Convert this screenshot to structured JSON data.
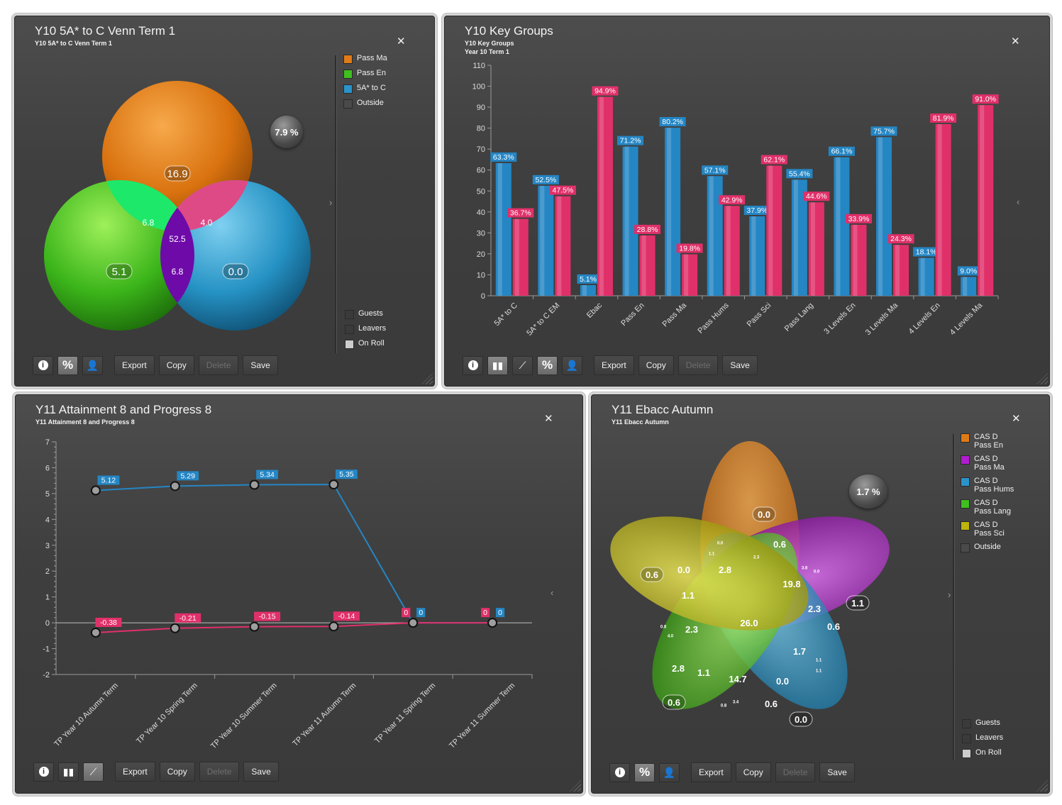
{
  "toolbar_labels": {
    "export": "Export",
    "copy": "Copy",
    "delete": "Delete",
    "save": "Save"
  },
  "panel1": {
    "title": "Y10 5A* to C Venn Term 1",
    "subtitle": "Y10 5A* to C Venn Term 1",
    "outside_pct": "7.9 %",
    "legend": [
      {
        "label": "Pass Ma",
        "color": "#e07b16"
      },
      {
        "label": "Pass En",
        "color": "#3fbf1e"
      },
      {
        "label": "5A* to C",
        "color": "#2a93c9"
      },
      {
        "label": "Outside",
        "color": "#4a4a4a"
      }
    ],
    "filters": [
      {
        "label": "Guests",
        "checked": false
      },
      {
        "label": "Leavers",
        "checked": false
      },
      {
        "label": "On Roll",
        "checked": true
      }
    ]
  },
  "panel2": {
    "title": "Y10 Key Groups",
    "subtitle": "Y10 Key Groups",
    "subtitle2": "Year 10 Term 1"
  },
  "panel3": {
    "title": "Y11 Attainment 8 and Progress 8",
    "subtitle": "Y11 Attainment 8 and Progress 8"
  },
  "panel4": {
    "title": "Y11 Ebacc Autumn",
    "subtitle": "Y11 Ebacc Autumn",
    "outside_pct": "1.7 %",
    "legend": [
      {
        "label": "CAS D Pass En",
        "color": "#e07b16"
      },
      {
        "label": "CAS D Pass Ma",
        "color": "#b21ccf"
      },
      {
        "label": "CAS D Pass Hums",
        "color": "#2a93c9"
      },
      {
        "label": "CAS D Pass Lang",
        "color": "#3fbf1e"
      },
      {
        "label": "CAS D Pass Sci",
        "color": "#bdb40e"
      },
      {
        "label": "Outside",
        "color": "#4a4a4a"
      }
    ],
    "filters": [
      {
        "label": "Guests",
        "checked": false
      },
      {
        "label": "Leavers",
        "checked": false
      },
      {
        "label": "On Roll",
        "checked": true
      }
    ]
  },
  "chart_data": [
    {
      "type": "venn",
      "title": "Y10 5A* to C Venn Term 1",
      "sets": [
        "Pass Ma",
        "Pass En",
        "5A* to C"
      ],
      "regions": {
        "Pass Ma only": "16.9",
        "Pass En only": "5.1",
        "5A* to C only": "0.0",
        "Pass Ma & Pass En": "6.8",
        "Pass Ma & 5A* to C": "4.0",
        "Pass En & 5A* to C": "6.8",
        "all three": "52.5",
        "outside": "7.9 %"
      }
    },
    {
      "type": "bar",
      "title": "Y10 Key Groups",
      "categories": [
        "5A* to C",
        "5A* to C EM",
        "Ebac",
        "Pass En",
        "Pass Ma",
        "Pass Hums",
        "Pass Sci",
        "Pass Lang",
        "3 Levels En",
        "3 Levels Ma",
        "4 Levels En",
        "4 Levels Ma"
      ],
      "series": [
        {
          "color": "#2586c4",
          "values": [
            63.3,
            52.5,
            5.1,
            71.2,
            80.2,
            57.1,
            37.9,
            55.4,
            66.1,
            75.7,
            18.1,
            9.0
          ]
        },
        {
          "color": "#e0306a",
          "values": [
            36.7,
            47.5,
            94.9,
            28.8,
            19.8,
            42.9,
            62.1,
            44.6,
            33.9,
            24.3,
            81.9,
            91.0
          ]
        }
      ],
      "ylim": [
        0,
        110
      ],
      "yticks": [
        0,
        10,
        20,
        30,
        40,
        50,
        60,
        70,
        80,
        90,
        100,
        110
      ]
    },
    {
      "type": "line",
      "title": "Y11 Attainment 8 and Progress 8",
      "categories": [
        "TP Year 10 Autumn Term",
        "TP Year 10 Spring Term",
        "TP Year 10 Summer Term",
        "TP Year 11 Autumn Term",
        "TP Year 11 Spring Term",
        "TP Year 11 Summer Term"
      ],
      "series": [
        {
          "color": "#2586c4",
          "values": [
            5.12,
            5.29,
            5.34,
            5.35,
            0,
            0
          ]
        },
        {
          "color": "#e0306a",
          "values": [
            -0.38,
            -0.21,
            -0.15,
            -0.14,
            0,
            0
          ]
        }
      ],
      "ylim": [
        -2,
        7
      ],
      "yticks": [
        -2,
        -1,
        0,
        1,
        2,
        3,
        4,
        5,
        6,
        7
      ]
    },
    {
      "type": "venn",
      "title": "Y11 Ebacc Autumn",
      "sets": [
        "CAS D Pass En",
        "CAS D Pass Ma",
        "CAS D Pass Hums",
        "CAS D Pass Lang",
        "CAS D Pass Sci"
      ],
      "labels": [
        "0.0",
        "0.6",
        "0.6",
        "0.0",
        "2.8",
        "19.8",
        "1.1",
        "1.1",
        "2.3",
        "26.0",
        "2.3",
        "0.6",
        "1.7",
        "2.8",
        "1.1",
        "14.7",
        "0.0",
        "0.6",
        "0.6",
        "0.0",
        "0.0",
        "1.1",
        "2.3",
        "3.8",
        "0.0",
        "1.1",
        "4.0",
        "0.8",
        "1.1",
        "0.8",
        "3.4",
        "0.0"
      ],
      "outside": "1.7 %"
    }
  ]
}
